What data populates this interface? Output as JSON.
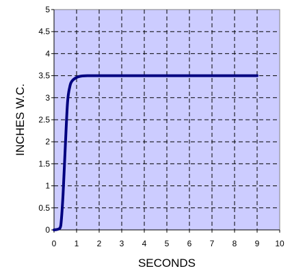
{
  "chart_data": {
    "type": "line",
    "title": "",
    "xlabel": "SECONDS",
    "ylabel": "INCHES W.C.",
    "xlim": [
      0,
      10
    ],
    "ylim": [
      0,
      5
    ],
    "xticks": [
      0,
      1,
      2,
      3,
      4,
      5,
      6,
      7,
      8,
      9,
      10
    ],
    "yticks": [
      0,
      0.5,
      1,
      1.5,
      2,
      2.5,
      3,
      3.5,
      4,
      4.5,
      5
    ],
    "xtick_labels": [
      "0",
      "1",
      "2",
      "3",
      "4",
      "5",
      "6",
      "7",
      "8",
      "9",
      "10"
    ],
    "ytick_labels": [
      "0",
      "0.5",
      "1",
      "1.5",
      "2",
      "2.5",
      "3",
      "3.5",
      "4",
      "4.5",
      "5"
    ],
    "grid": true,
    "grid_style": "dashed",
    "legend": "none",
    "plot_background": "#ccccff",
    "line_color": "#000080",
    "series": [
      {
        "x": [
          0,
          0.2,
          0.3,
          0.4,
          0.5,
          0.6,
          0.7,
          0.8,
          1.0,
          1.2,
          1.5,
          2.0,
          3.0,
          5.0,
          7.0,
          9.0
        ],
        "y": [
          0,
          0.02,
          0.1,
          0.8,
          1.9,
          2.9,
          3.25,
          3.38,
          3.46,
          3.49,
          3.5,
          3.5,
          3.5,
          3.5,
          3.5,
          3.5
        ]
      }
    ]
  }
}
